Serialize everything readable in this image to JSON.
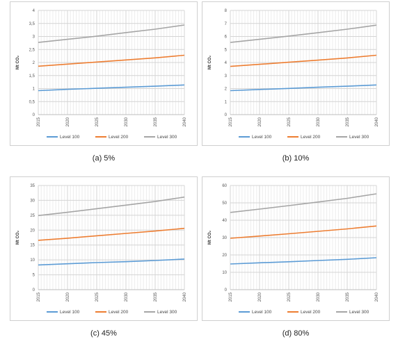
{
  "legend_labels": [
    "Level 100",
    "Level 200",
    "Level 300"
  ],
  "series_colors": [
    "#5b9bd5",
    "#ed7d31",
    "#a5a5a5"
  ],
  "chart_data": [
    {
      "type": "line",
      "caption": "(a) 5%",
      "ylabel": "Mt CO₂",
      "x": [
        2015,
        2020,
        2025,
        2030,
        2035,
        2040
      ],
      "ylim": [
        0,
        4
      ],
      "yticks": [
        "0",
        "0,5",
        "1",
        "1,5",
        "2",
        "2,5",
        "3",
        "3,5",
        "4"
      ],
      "grid": true,
      "legend": "bottom",
      "series": [
        {
          "name": "Level 100",
          "values": [
            0.92,
            0.97,
            1.01,
            1.05,
            1.09,
            1.14
          ]
        },
        {
          "name": "Level 200",
          "values": [
            1.86,
            1.94,
            2.02,
            2.1,
            2.18,
            2.28
          ]
        },
        {
          "name": "Level 300",
          "values": [
            2.77,
            2.89,
            3.01,
            3.15,
            3.28,
            3.44
          ]
        }
      ]
    },
    {
      "type": "line",
      "caption": "(b) 10%",
      "ylabel": "Mt CO₂",
      "x": [
        2015,
        2020,
        2025,
        2030,
        2035,
        2040
      ],
      "ylim": [
        0,
        8
      ],
      "yticks": [
        "0",
        "1",
        "2",
        "3",
        "4",
        "5",
        "6",
        "7",
        "8"
      ],
      "grid": true,
      "legend": "bottom",
      "series": [
        {
          "name": "Level 100",
          "values": [
            1.84,
            1.93,
            2.01,
            2.1,
            2.18,
            2.28
          ]
        },
        {
          "name": "Level 200",
          "values": [
            3.7,
            3.86,
            4.02,
            4.18,
            4.35,
            4.56
          ]
        },
        {
          "name": "Level 300",
          "values": [
            5.54,
            5.78,
            6.03,
            6.29,
            6.56,
            6.87
          ]
        }
      ]
    },
    {
      "type": "line",
      "caption": "(c) 45%",
      "ylabel": "Mt CO₂",
      "x": [
        2015,
        2020,
        2025,
        2030,
        2035,
        2040
      ],
      "ylim": [
        0,
        35
      ],
      "yticks": [
        "0",
        "5",
        "10",
        "15",
        "20",
        "25",
        "30",
        "35"
      ],
      "grid": true,
      "legend": "bottom",
      "series": [
        {
          "name": "Level 100",
          "values": [
            8.3,
            8.7,
            9.1,
            9.4,
            9.8,
            10.3
          ]
        },
        {
          "name": "Level 200",
          "values": [
            16.6,
            17.3,
            18.1,
            18.9,
            19.7,
            20.6
          ]
        },
        {
          "name": "Level 300",
          "values": [
            24.9,
            26.0,
            27.2,
            28.4,
            29.6,
            31.1
          ]
        }
      ]
    },
    {
      "type": "line",
      "caption": "(d) 80%",
      "ylabel": "Mt CO₂",
      "x": [
        2015,
        2020,
        2025,
        2030,
        2035,
        2040
      ],
      "ylim": [
        0,
        60
      ],
      "yticks": [
        "0",
        "10",
        "20",
        "30",
        "40",
        "50",
        "60"
      ],
      "grid": true,
      "legend": "bottom",
      "series": [
        {
          "name": "Level 100",
          "values": [
            14.8,
            15.5,
            16.1,
            16.8,
            17.5,
            18.4
          ]
        },
        {
          "name": "Level 200",
          "values": [
            29.6,
            30.9,
            32.2,
            33.6,
            35.0,
            36.7
          ]
        },
        {
          "name": "Level 300",
          "values": [
            44.5,
            46.4,
            48.4,
            50.5,
            52.6,
            55.2
          ]
        }
      ]
    }
  ]
}
